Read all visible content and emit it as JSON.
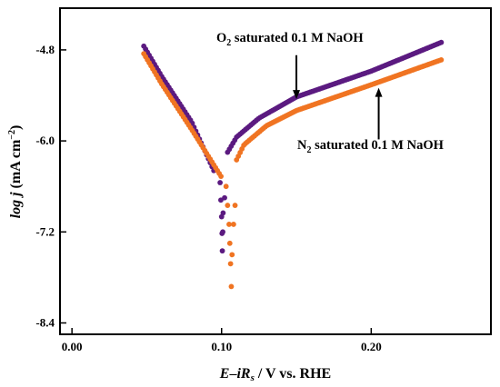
{
  "chart_data": {
    "type": "scatter",
    "title": "",
    "xlabel": {
      "italic_main": "E",
      "dash": "–",
      "italic_sub_base": "iR",
      "sub": "s",
      "rest": " / V vs. RHE"
    },
    "ylabel": {
      "italic": "log j",
      "rest": " (mA cm",
      "sup": "−2",
      "close": ")"
    },
    "xlim": [
      -0.008,
      0.28
    ],
    "ylim": [
      -8.55,
      -4.25
    ],
    "xticks": [
      0.0,
      0.1,
      0.2
    ],
    "xtick_labels": [
      "0.00",
      "0.10",
      "0.20"
    ],
    "yticks": [
      -4.8,
      -6.0,
      -7.2,
      -8.4
    ],
    "ytick_labels": [
      "-4.8",
      "-6.0",
      "-7.2",
      "-8.4"
    ],
    "series": [
      {
        "name": "O2 saturated 0.1 M NaOH",
        "color": "#5b1a80",
        "x_range": [
          0.048,
          0.247
        ],
        "corrosion_potential": 0.1005,
        "anodic_points": [
          [
            0.104,
            -6.15
          ],
          [
            0.11,
            -5.95
          ],
          [
            0.125,
            -5.7
          ],
          [
            0.15,
            -5.42
          ],
          [
            0.2,
            -5.08
          ],
          [
            0.247,
            -4.7
          ]
        ],
        "cathodic_points": [
          [
            0.048,
            -4.75
          ],
          [
            0.06,
            -5.15
          ],
          [
            0.08,
            -5.75
          ],
          [
            0.095,
            -6.4
          ]
        ],
        "spike_points": [
          [
            0.099,
            -6.55
          ],
          [
            0.0995,
            -6.78
          ],
          [
            0.1,
            -7.0
          ],
          [
            0.1003,
            -7.22
          ],
          [
            0.1005,
            -7.45
          ],
          [
            0.1008,
            -7.2
          ],
          [
            0.101,
            -6.95
          ],
          [
            0.102,
            -6.75
          ]
        ]
      },
      {
        "name": "N2 saturated 0.1 M NaOH",
        "color": "#f07422",
        "x_range": [
          0.048,
          0.247
        ],
        "corrosion_potential": 0.1065,
        "anodic_points": [
          [
            0.11,
            -6.25
          ],
          [
            0.115,
            -6.05
          ],
          [
            0.13,
            -5.8
          ],
          [
            0.15,
            -5.6
          ],
          [
            0.2,
            -5.26
          ],
          [
            0.247,
            -4.93
          ]
        ],
        "cathodic_points": [
          [
            0.048,
            -4.85
          ],
          [
            0.06,
            -5.25
          ],
          [
            0.08,
            -5.85
          ],
          [
            0.1,
            -6.48
          ]
        ],
        "spike_points": [
          [
            0.103,
            -6.6
          ],
          [
            0.104,
            -6.85
          ],
          [
            0.105,
            -7.1
          ],
          [
            0.1055,
            -7.35
          ],
          [
            0.106,
            -7.62
          ],
          [
            0.1065,
            -7.92
          ],
          [
            0.107,
            -7.5
          ],
          [
            0.108,
            -7.1
          ],
          [
            0.109,
            -6.85
          ]
        ]
      }
    ],
    "annotations": [
      {
        "text_pre": "O",
        "sub": "2",
        "text_post": " saturated 0.1 M NaOH",
        "target_series": 0,
        "arrow_x": 0.15,
        "arrow_from_y": -4.87,
        "arrow_to_y": -5.45
      },
      {
        "text_pre": "N",
        "sub": "2",
        "text_post": " saturated 0.1 M NaOH",
        "target_series": 1,
        "arrow_x": 0.205,
        "arrow_from_y": -5.98,
        "arrow_to_y": -5.3
      }
    ],
    "grid": false,
    "legend": "none"
  }
}
